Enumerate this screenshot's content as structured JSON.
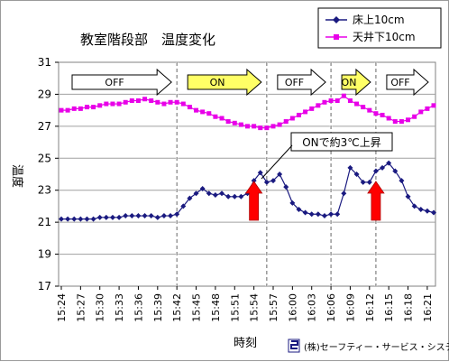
{
  "chart_data": {
    "type": "line",
    "title": "教室階段部　温度変化",
    "xlabel": "時刻",
    "ylabel": "温度",
    "ylim": [
      17,
      31
    ],
    "yticks": [
      17,
      19,
      21,
      23,
      25,
      27,
      29,
      31
    ],
    "grid": true,
    "legend_position": "top-right",
    "x": [
      "15:24",
      "15:25",
      "15:26",
      "15:27",
      "15:28",
      "15:29",
      "15:30",
      "15:31",
      "15:32",
      "15:33",
      "15:34",
      "15:35",
      "15:36",
      "15:37",
      "15:38",
      "15:39",
      "15:40",
      "15:41",
      "15:42",
      "15:43",
      "15:44",
      "15:45",
      "15:46",
      "15:47",
      "15:48",
      "15:49",
      "15:50",
      "15:51",
      "15:52",
      "15:53",
      "15:54",
      "15:55",
      "15:56",
      "15:57",
      "15:58",
      "15:59",
      "16:00",
      "16:01",
      "16:02",
      "16:03",
      "16:04",
      "16:05",
      "16:06",
      "16:07",
      "16:08",
      "16:09",
      "16:10",
      "16:11",
      "16:12",
      "16:13",
      "16:14",
      "16:15",
      "16:16",
      "16:17",
      "16:18",
      "16:19",
      "16:20",
      "16:21",
      "16:22"
    ],
    "x_tick_labels": [
      "15:24",
      "15:27",
      "15:30",
      "15:33",
      "15:36",
      "15:39",
      "15:42",
      "15:45",
      "15:48",
      "15:51",
      "15:54",
      "15:57",
      "16:00",
      "16:03",
      "16:06",
      "16:09",
      "16:12",
      "16:15",
      "16:18",
      "16:21"
    ],
    "series": [
      {
        "name": "床上10cm",
        "color": "#1a1a80",
        "marker": "diamond",
        "values": [
          21.2,
          21.2,
          21.2,
          21.2,
          21.2,
          21.2,
          21.3,
          21.3,
          21.3,
          21.3,
          21.4,
          21.4,
          21.4,
          21.4,
          21.4,
          21.3,
          21.4,
          21.4,
          21.5,
          22.0,
          22.5,
          22.8,
          23.1,
          22.8,
          22.7,
          22.8,
          22.6,
          22.6,
          22.6,
          22.8,
          23.6,
          24.1,
          23.5,
          23.6,
          24.0,
          23.2,
          22.2,
          21.8,
          21.6,
          21.5,
          21.5,
          21.4,
          21.5,
          21.5,
          22.8,
          24.4,
          24.0,
          23.5,
          23.5,
          24.2,
          24.4,
          24.7,
          24.2,
          23.6,
          22.6,
          22.0,
          21.8,
          21.7,
          21.6
        ]
      },
      {
        "name": "天井下10cm",
        "color": "#e800e8",
        "marker": "square",
        "values": [
          28.0,
          28.0,
          28.1,
          28.1,
          28.2,
          28.2,
          28.3,
          28.4,
          28.4,
          28.4,
          28.5,
          28.6,
          28.6,
          28.7,
          28.6,
          28.5,
          28.4,
          28.5,
          28.5,
          28.4,
          28.2,
          28.0,
          27.9,
          27.8,
          27.6,
          27.5,
          27.3,
          27.2,
          27.1,
          27.0,
          27.0,
          26.9,
          26.9,
          27.0,
          27.1,
          27.3,
          27.5,
          27.7,
          27.9,
          28.1,
          28.3,
          28.5,
          28.6,
          28.6,
          28.9,
          28.6,
          28.4,
          28.2,
          28.0,
          27.8,
          27.7,
          27.5,
          27.3,
          27.3,
          27.4,
          27.6,
          27.9,
          28.1,
          28.3
        ]
      }
    ],
    "phases": [
      {
        "label": "OFF",
        "color": "#ffffff",
        "from": "15:24",
        "to": "15:42"
      },
      {
        "label": "ON",
        "color": "#ffff66",
        "from": "15:42",
        "to": "15:56"
      },
      {
        "label": "OFF",
        "color": "#ffffff",
        "from": "15:56",
        "to": "16:06"
      },
      {
        "label": "ON",
        "color": "#ffff66",
        "from": "16:06",
        "to": "16:13"
      },
      {
        "label": "OFF",
        "color": "#ffffff",
        "from": "16:13",
        "to": "16:22"
      }
    ],
    "annotation": {
      "text": "ONで約3℃上昇",
      "arrow_color": "#ff0000",
      "arrows_at": [
        "15:54",
        "16:13"
      ]
    }
  },
  "footer": {
    "company": "(株)セーフティー・サービス・システム"
  }
}
